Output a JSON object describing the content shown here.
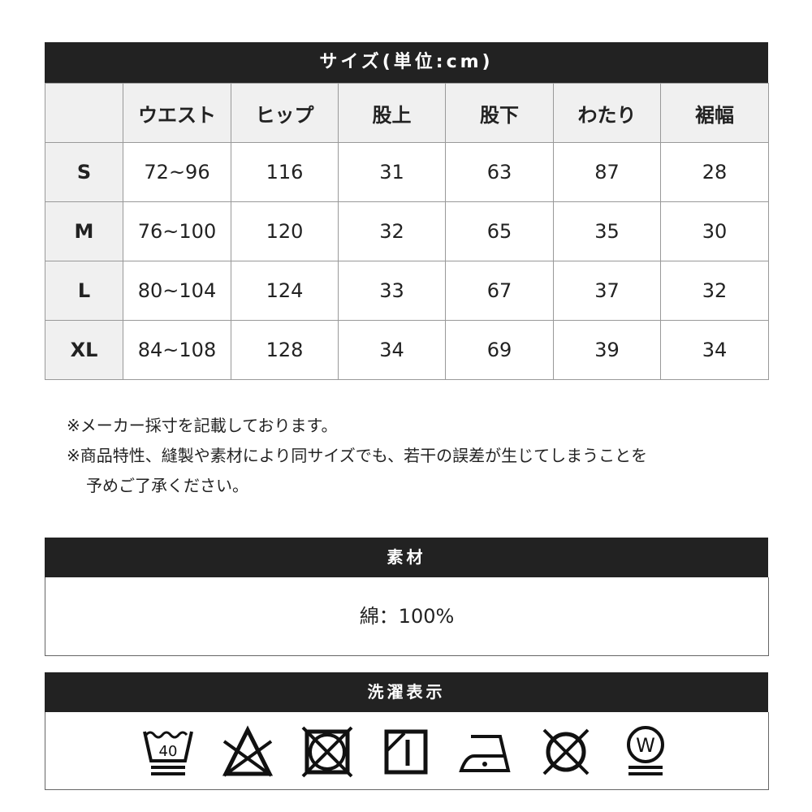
{
  "size_table": {
    "title": "サイズ(単位:cm)",
    "headers": [
      "",
      "ウエスト",
      "ヒップ",
      "股上",
      "股下",
      "わたり",
      "裾幅"
    ],
    "rows": [
      [
        "S",
        "72~96",
        "116",
        "31",
        "63",
        "87",
        "28"
      ],
      [
        "M",
        "76~100",
        "120",
        "32",
        "65",
        "35",
        "30"
      ],
      [
        "L",
        "80~104",
        "124",
        "33",
        "67",
        "37",
        "32"
      ],
      [
        "XL",
        "84~108",
        "128",
        "34",
        "69",
        "39",
        "34"
      ]
    ]
  },
  "notes": [
    "※メーカー採寸を記載しております。",
    "※商品特性、縫製や素材により同サイズでも、若干の誤差が生じてしまうことを",
    "予めご了承ください。"
  ],
  "material": {
    "title": "素材",
    "value": "綿：100%"
  },
  "care": {
    "title": "洗濯表示",
    "icons": [
      "wash-40-gentle-icon",
      "no-bleach-icon",
      "no-tumble-dry-icon",
      "shade-drip-dry-icon",
      "iron-low-icon",
      "no-dry-clean-icon",
      "wet-clean-gentle-icon"
    ],
    "wash_temp": "40",
    "wet_clean_label": "W"
  }
}
